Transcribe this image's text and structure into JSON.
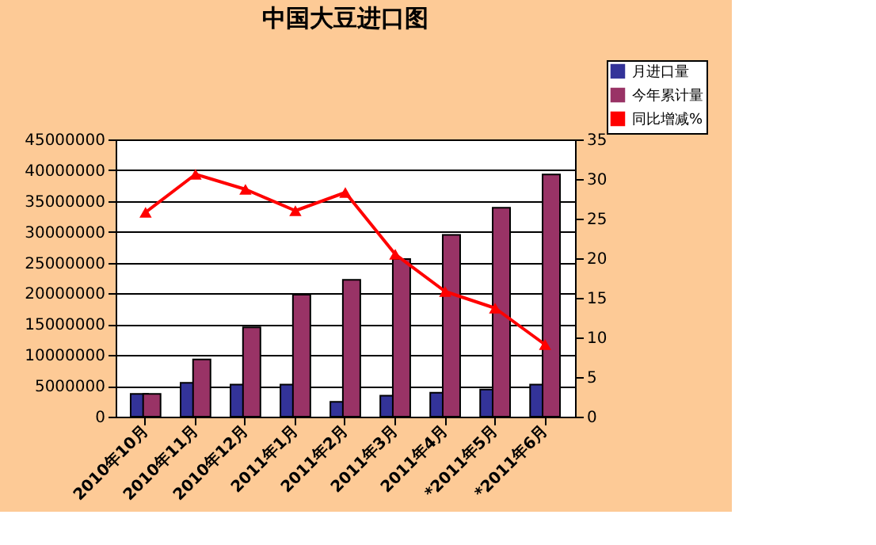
{
  "chart_data": {
    "type": "bar",
    "title": "中国大豆进口图",
    "categories": [
      "2010年10月",
      "2010年11月",
      "2010年12月",
      "2011年1月",
      "2011年2月",
      "2011年3月",
      "2011年4月",
      "*2011年5月",
      "*2011年6月"
    ],
    "series": [
      {
        "name": "月进口量",
        "color": "#333399",
        "values": [
          3700000,
          5500000,
          5200000,
          5200000,
          2400000,
          3400000,
          3900000,
          4400000,
          5200000
        ]
      },
      {
        "name": "今年累计量",
        "color": "#993366",
        "values": [
          3700000,
          9300000,
          14500000,
          19800000,
          22200000,
          25600000,
          29500000,
          33900000,
          39300000
        ]
      },
      {
        "name": "同比增减%",
        "color": "#ff0000",
        "type": "line",
        "axis": "y2",
        "marker": "triangle",
        "values": [
          25.8,
          30.6,
          28.7,
          26.0,
          28.3,
          20.5,
          15.8,
          13.7,
          9.1
        ]
      }
    ],
    "ylim": [
      0,
      45000000
    ],
    "yticks": [
      0,
      5000000,
      10000000,
      15000000,
      20000000,
      25000000,
      30000000,
      35000000,
      40000000,
      45000000
    ],
    "y2lim": [
      0,
      35
    ],
    "y2ticks": [
      0,
      5,
      10,
      15,
      20,
      25,
      30,
      35
    ],
    "grid": "y",
    "legend": "top right"
  }
}
